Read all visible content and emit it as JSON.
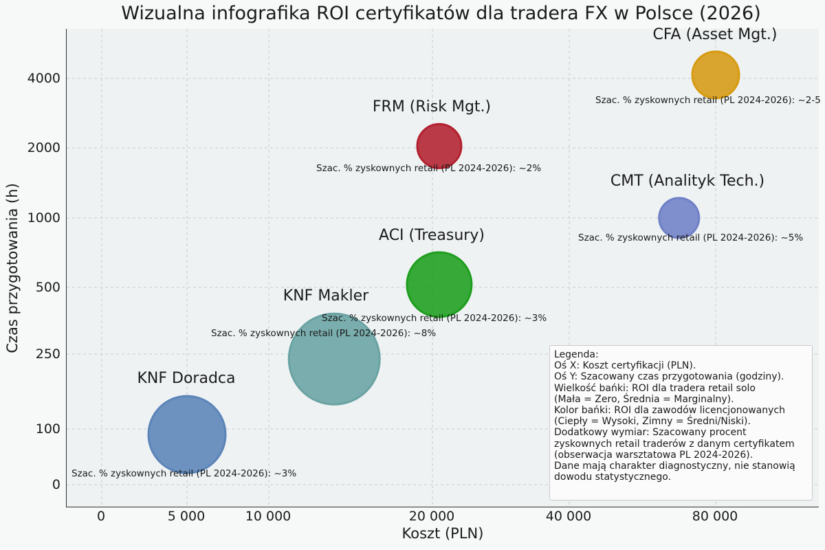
{
  "chart_data": {
    "type": "scatter",
    "title": "Wizualna infografika ROI certyfikatów dla tradera FX w Polsce (2026)",
    "xlabel": "Koszt (PLN)",
    "ylabel": "Czas przygotowania (h)",
    "x_tick_labels": [
      "0",
      "5 000",
      "10 000",
      "20 000",
      "40 000",
      "80 000"
    ],
    "y_tick_labels": [
      "0",
      "100",
      "250",
      "500",
      "1000",
      "2000",
      "4000"
    ],
    "grid": true,
    "legend_placement": "bottom-right",
    "points": [
      {
        "name": "KNF Doradca",
        "cost": 5000,
        "hours": 90,
        "color": "#5b84b8",
        "note": "Szac. % zyskownych retail (PL 2024-2026): ~3%"
      },
      {
        "name": "KNF Makler",
        "cost": 14000,
        "hours": 240,
        "color": "#6aa3a3",
        "note": "Szac. % zyskownych retail (PL 2024-2026): ~8%"
      },
      {
        "name": "ACI (Treasury)",
        "cost": 21000,
        "hours": 520,
        "color": "#1e9e1e",
        "note": "Szac. % zyskownych retail (PL 2024-2026): ~3%"
      },
      {
        "name": "FRM (Risk Mgt.)",
        "cost": 21000,
        "hours": 2050,
        "color": "#b3212f",
        "note": "Szac. % zyskownych retail (PL 2024-2026): ~2%"
      },
      {
        "name": "CMT (Analityk Tech.)",
        "cost": 70000,
        "hours": 1000,
        "color": "#7080c6",
        "note": "Szac. % zyskownych retail (PL 2024-2026): ~5%"
      },
      {
        "name": "CFA (Asset Mgt.)",
        "cost": 80000,
        "hours": 4100,
        "color": "#d79a12",
        "note": "Szac. % zyskownych retail (PL 2024-2026): ~2-5"
      }
    ],
    "legend_lines": [
      "Legenda:",
      "Oś X: Koszt certyfikacji (PLN).",
      "Oś Y: Szacowany czas przygotowania (godziny).",
      "Wielkość bańki: ROI dla tradera retail solo",
      "(Mała = Zero, Średnia = Marginalny).",
      "Kolor bańki: ROI dla zawodów licencjonowanych",
      "(Ciepły = Wysoki, Zimny = Średni/Niski).",
      "Dodatkowy wymiar: Szacowany procent",
      "zyskownych retail traderów z danym certyfikatem",
      "(obserwacja warsztatowa PL 2024-2026).",
      "Dane mają charakter diagnostyczny, nie stanowią",
      "dowodu statystycznego."
    ]
  }
}
